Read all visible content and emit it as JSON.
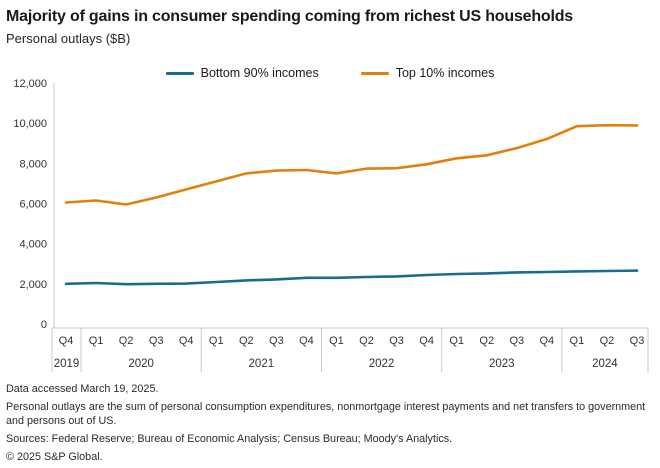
{
  "header": {
    "title": "Majority of gains in consumer spending coming from richest US households",
    "subtitle": "Personal outlays ($B)"
  },
  "chart_data": {
    "type": "line",
    "title": "Majority of gains in consumer spending coming from richest US households",
    "ylabel": "Personal outlays ($B)",
    "xlabel": "",
    "ylim": [
      0,
      12000
    ],
    "y_ticks": [
      0,
      2000,
      4000,
      6000,
      8000,
      10000,
      12000
    ],
    "grid": false,
    "legend_position": "top-center",
    "x_groups": [
      {
        "year": "2019",
        "quarters": [
          "Q4"
        ]
      },
      {
        "year": "2020",
        "quarters": [
          "Q1",
          "Q2",
          "Q3",
          "Q4"
        ]
      },
      {
        "year": "2021",
        "quarters": [
          "Q1",
          "Q2",
          "Q3",
          "Q4"
        ]
      },
      {
        "year": "2022",
        "quarters": [
          "Q1",
          "Q2",
          "Q3",
          "Q4"
        ]
      },
      {
        "year": "2023",
        "quarters": [
          "Q1",
          "Q2",
          "Q3",
          "Q4"
        ]
      },
      {
        "year": "2024",
        "quarters": [
          "Q1",
          "Q2",
          "Q3"
        ]
      }
    ],
    "x": [
      "Q4 2019",
      "Q1 2020",
      "Q2 2020",
      "Q3 2020",
      "Q4 2020",
      "Q1 2021",
      "Q2 2021",
      "Q3 2021",
      "Q4 2021",
      "Q1 2022",
      "Q2 2022",
      "Q3 2022",
      "Q4 2022",
      "Q1 2023",
      "Q2 2023",
      "Q3 2023",
      "Q4 2023",
      "Q1 2024",
      "Q2 2024",
      "Q3 2024"
    ],
    "series": [
      {
        "name": "Bottom 90% incomes",
        "color": "#166E8C",
        "values": [
          2000,
          2040,
          1980,
          2000,
          2010,
          2090,
          2170,
          2220,
          2300,
          2300,
          2340,
          2370,
          2440,
          2490,
          2520,
          2570,
          2590,
          2620,
          2640,
          2660
        ]
      },
      {
        "name": "Top 10% incomes",
        "color": "#E2800E",
        "values": [
          6050,
          6150,
          5950,
          6300,
          6700,
          7100,
          7500,
          7640,
          7670,
          7500,
          7740,
          7760,
          7950,
          8250,
          8400,
          8760,
          9210,
          9850,
          9900,
          9890
        ]
      }
    ],
    "axis_color": "#c9c9c9",
    "tick_label_color": "#333333"
  },
  "footer": {
    "accessed": "Data accessed March 19, 2025.",
    "note": "Personal outlays are the sum of personal consumption expenditures, nonmortgage interest payments and net transfers to government and persons out of US.",
    "sources": "Sources: Federal Reserve; Bureau of Economic Analysis; Census Bureau; Moody's Analytics.",
    "copyright": "© 2025 S&P Global."
  }
}
